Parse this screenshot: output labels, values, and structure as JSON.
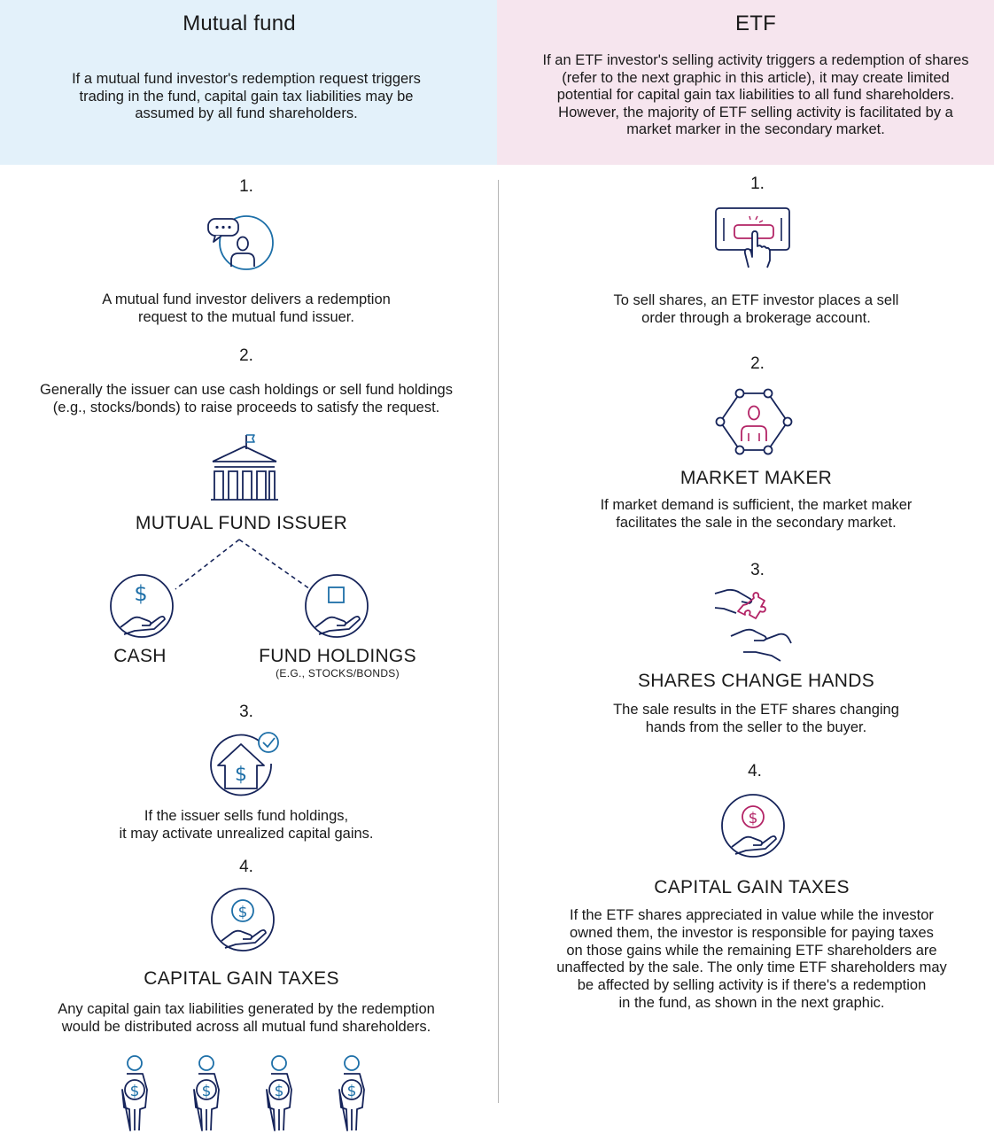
{
  "colors": {
    "mutual_fund_header_bg": "#e3f1fa",
    "etf_header_bg": "#f6e5ee",
    "icon_blue": "#1d6fa8",
    "icon_navy": "#16245a",
    "icon_magenta": "#b32466",
    "divider": "#b5b5b5"
  },
  "mutual_fund": {
    "title": "Mutual fund",
    "intro_lines": [
      "If a mutual fund investor's redemption request triggers",
      "trading in the fund, capital gain tax liabilities may be",
      "assumed by all fund shareholders."
    ],
    "step1": {
      "number": "1.",
      "icon": "investor-chat-icon",
      "lines": [
        "A mutual fund investor delivers a redemption",
        "request to the mutual fund issuer."
      ]
    },
    "step2": {
      "number": "2.",
      "lines": [
        "Generally the issuer can use cash holdings or sell fund holdings",
        "(e.g., stocks/bonds) to raise proceeds to satisfy the request."
      ],
      "issuer_icon": "building-icon",
      "issuer_label": "MUTUAL FUND ISSUER",
      "cash_icon": "cash-hand-icon",
      "cash_label": "CASH",
      "holdings_icon": "holdings-hand-icon",
      "holdings_label": "FUND HOLDINGS",
      "holdings_sublabel": "(E.G., STOCKS/BONDS)"
    },
    "step3": {
      "number": "3.",
      "icon": "house-dollar-check-icon",
      "lines": [
        "If the issuer sells fund holdings,",
        "it may activate unrealized capital gains."
      ]
    },
    "step4": {
      "number": "4.",
      "icon": "coin-hand-icon",
      "label": "CAPITAL GAIN TAXES",
      "lines": [
        "Any capital gain tax liabilities generated by the redemption",
        "would be distributed across all mutual fund shareholders."
      ],
      "shareholder_icon": "shareholder-icon"
    }
  },
  "etf": {
    "title": "ETF",
    "intro_lines": [
      "If an ETF investor's selling activity triggers a redemption of shares",
      "(refer to the next graphic in this article), it may create limited",
      "potential for capital gain tax liabilities to all fund shareholders.",
      "However, the majority of ETF selling activity is facilitated by a",
      "market marker in the secondary market."
    ],
    "step1": {
      "number": "1.",
      "icon": "tablet-tap-icon",
      "lines": [
        "To sell shares, an ETF investor places a sell",
        "order through a brokerage account."
      ]
    },
    "step2": {
      "number": "2.",
      "icon": "network-person-icon",
      "label": "MARKET MAKER",
      "lines": [
        "If market demand is sufficient, the market maker",
        "facilitates the sale in the secondary market."
      ]
    },
    "step3": {
      "number": "3.",
      "icon": "puzzle-hands-icon",
      "label": "SHARES CHANGE HANDS",
      "lines": [
        "The sale results in the ETF shares changing",
        "hands from the seller to the buyer."
      ]
    },
    "step4": {
      "number": "4.",
      "icon": "coin-hand-icon",
      "label": "CAPITAL GAIN TAXES",
      "lines": [
        "If the ETF shares appreciated in value while the investor",
        "owned them, the investor is responsible for paying taxes",
        "on those gains while the remaining ETF shareholders are",
        "unaffected by the sale. The only time ETF shareholders may",
        "be affected by selling activity is if there's a redemption",
        "in the fund, as shown in the next graphic."
      ]
    }
  }
}
